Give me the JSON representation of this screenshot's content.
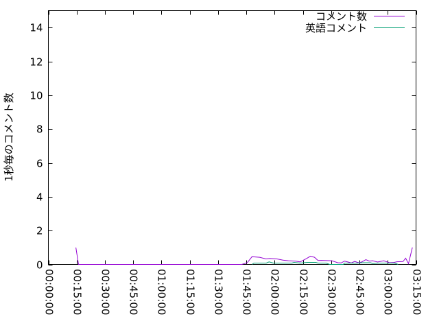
{
  "chart_data": {
    "type": "line",
    "title": "",
    "xlabel": "",
    "ylabel": "1秒毎のコメント数",
    "xlim": [
      "00:00:00",
      "03:15:00"
    ],
    "ylim": [
      0,
      15
    ],
    "xticks": [
      "00:00:00",
      "00:15:00",
      "00:30:00",
      "00:45:00",
      "01:00:00",
      "01:15:00",
      "01:30:00",
      "01:45:00",
      "02:00:00",
      "02:15:00",
      "02:30:00",
      "02:45:00",
      "03:00:00",
      "03:15:00"
    ],
    "yticks": [
      0,
      2,
      4,
      6,
      8,
      10,
      12,
      14
    ],
    "grid": false,
    "legend_placement": "top-right",
    "series": [
      {
        "name": "コメント数",
        "color": "#9400d3",
        "points": [
          [
            "00:14:35",
            1.0
          ],
          [
            "00:16:00",
            0
          ],
          [
            "01:42:35",
            0
          ],
          [
            "01:45:30",
            0.1
          ],
          [
            "01:48:00",
            0.46
          ],
          [
            "01:52:05",
            0.42
          ],
          [
            "01:55:20",
            0.33
          ],
          [
            "01:57:30",
            0.35
          ],
          [
            "02:01:05",
            0.33
          ],
          [
            "02:04:25",
            0.25
          ],
          [
            "02:07:20",
            0.22
          ],
          [
            "02:11:00",
            0.2
          ],
          [
            "02:13:30",
            0.15
          ],
          [
            "02:17:10",
            0.36
          ],
          [
            "02:19:00",
            0.49
          ],
          [
            "02:21:10",
            0.42
          ],
          [
            "02:23:00",
            0.23
          ],
          [
            "02:24:50",
            0.24
          ],
          [
            "02:30:20",
            0.22
          ],
          [
            "02:33:30",
            0.1
          ],
          [
            "02:35:20",
            0.09
          ],
          [
            "02:37:05",
            0.2
          ],
          [
            "02:40:40",
            0.09
          ],
          [
            "02:42:30",
            0.18
          ],
          [
            "02:44:25",
            0.1
          ],
          [
            "02:46:10",
            0.14
          ],
          [
            "02:48:25",
            0.28
          ],
          [
            "02:50:10",
            0.2
          ],
          [
            "02:52:00",
            0.22
          ],
          [
            "02:54:35",
            0.14
          ],
          [
            "02:57:55",
            0.22
          ],
          [
            "03:00:50",
            0.1
          ],
          [
            "03:03:00",
            0.11
          ],
          [
            "03:04:50",
            0.16
          ],
          [
            "03:08:05",
            0.17
          ],
          [
            "03:09:30",
            0.37
          ],
          [
            "03:11:00",
            0.05
          ],
          [
            "03:13:05",
            1.0
          ]
        ]
      },
      {
        "name": "英語コメント",
        "color": "#009e73",
        "points": [
          [
            "01:48:00",
            0
          ],
          [
            "01:49:05",
            0.08
          ],
          [
            "01:55:35",
            0.08
          ],
          [
            "01:57:05",
            0.15
          ],
          [
            "01:59:20",
            0.08
          ],
          [
            "02:09:10",
            0.08
          ],
          [
            "02:10:20",
            0.12
          ],
          [
            "02:13:30",
            0.08
          ],
          [
            "02:17:10",
            0.12
          ],
          [
            "02:21:55",
            0.12
          ],
          [
            "02:23:00",
            0.08
          ],
          [
            "02:27:20",
            0.08
          ],
          [
            "02:29:10",
            0
          ],
          [
            "02:36:25",
            0
          ],
          [
            "02:37:05",
            0.08
          ],
          [
            "02:43:40",
            0.08
          ],
          [
            "02:46:10",
            0.1
          ],
          [
            "02:51:00",
            0.1
          ],
          [
            "02:52:00",
            0.05
          ],
          [
            "02:55:20",
            0.08
          ],
          [
            "03:03:40",
            0.08
          ],
          [
            "03:05:30",
            0
          ]
        ]
      }
    ]
  }
}
